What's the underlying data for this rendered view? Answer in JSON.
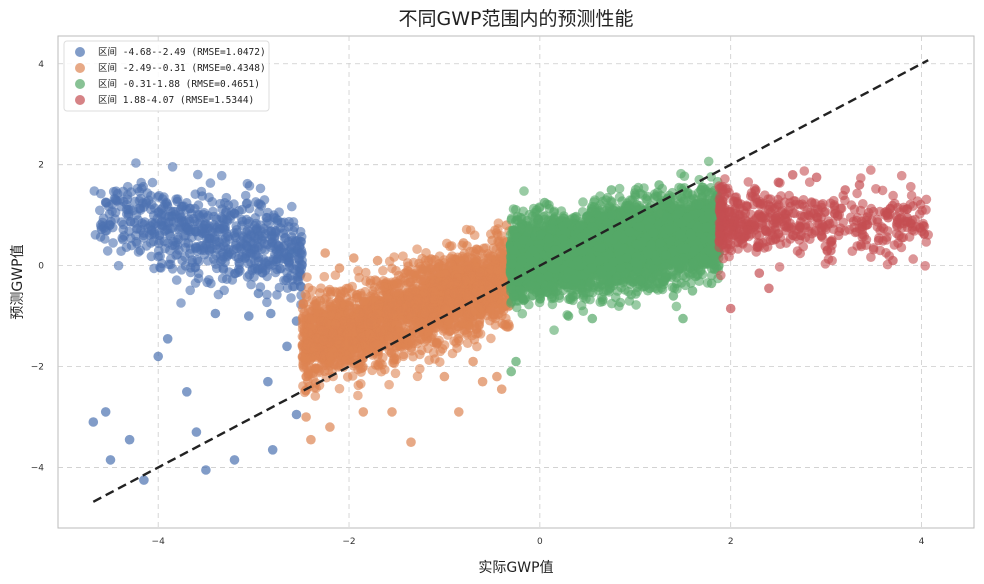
{
  "chart_data": {
    "type": "scatter",
    "title": "不同GWP范围内的预测性能",
    "xlabel": "实际GWP值",
    "ylabel": "预测GWP值",
    "xlim": [
      -5.05,
      4.55
    ],
    "ylim": [
      -5.2,
      4.55
    ],
    "xticks": [
      -4,
      -2,
      0,
      2,
      4
    ],
    "yticks": [
      -4,
      -2,
      0,
      2,
      4
    ],
    "xtick_labels": [
      "−4",
      "−2",
      "0",
      "2",
      "4"
    ],
    "ytick_labels": [
      "−4",
      "−2",
      "0",
      "2",
      "4"
    ],
    "grid": true,
    "legend_position": "top-left",
    "reference_line": {
      "style": "dashed",
      "color": "#222222",
      "from": [
        -4.68,
        -4.68
      ],
      "to": [
        4.07,
        4.07
      ]
    },
    "series": [
      {
        "name": "区间 -4.68--2.49 (RMSE=1.0472)",
        "color": "#4c72b0",
        "x_range": [
          -4.68,
          -2.49
        ],
        "count": 650,
        "points": [
          [
            -4.68,
            -3.1
          ],
          [
            -4.55,
            -2.9
          ],
          [
            -4.5,
            -3.85
          ],
          [
            -4.3,
            -3.45
          ],
          [
            -4.15,
            -4.25
          ],
          [
            -4.0,
            -1.8
          ],
          [
            -3.9,
            -1.45
          ],
          [
            -3.7,
            -2.5
          ],
          [
            -3.5,
            -4.05
          ],
          [
            -3.4,
            -0.95
          ],
          [
            -3.2,
            -3.85
          ],
          [
            -3.05,
            -1.0
          ],
          [
            -2.95,
            -0.55
          ],
          [
            -2.85,
            -2.3
          ],
          [
            -2.82,
            -0.95
          ],
          [
            -2.75,
            0.9
          ],
          [
            -2.65,
            -1.6
          ],
          [
            -2.6,
            0.25
          ],
          [
            -2.55,
            -1.1
          ],
          [
            -2.8,
            -3.65
          ],
          [
            -3.6,
            -3.3
          ],
          [
            -2.55,
            -2.95
          ]
        ]
      },
      {
        "name": "区间 -2.49--0.31 (RMSE=0.4348)",
        "color": "#dd8452",
        "x_range": [
          -2.49,
          -0.31
        ],
        "count": 2300,
        "points": [
          [
            -2.45,
            -3.0
          ],
          [
            -2.4,
            -3.45
          ],
          [
            -2.3,
            -0.7
          ],
          [
            -2.25,
            0.25
          ],
          [
            -2.2,
            -3.2
          ],
          [
            -2.1,
            -0.05
          ],
          [
            -1.95,
            0.15
          ],
          [
            -1.85,
            -2.9
          ],
          [
            -1.7,
            0.1
          ],
          [
            -1.55,
            -2.9
          ],
          [
            -1.35,
            -3.5
          ],
          [
            -1.2,
            -0.1
          ],
          [
            -1.0,
            -2.2
          ],
          [
            -0.85,
            -2.9
          ],
          [
            -0.8,
            0.45
          ],
          [
            -0.7,
            -1.9
          ],
          [
            -0.6,
            -2.3
          ],
          [
            -0.5,
            0.5
          ],
          [
            -0.45,
            -2.2
          ],
          [
            -0.35,
            0.8
          ],
          [
            -0.4,
            -2.45
          ]
        ]
      },
      {
        "name": "区间 -0.31-1.88 (RMSE=0.4651)",
        "color": "#55a868",
        "x_range": [
          -0.31,
          1.88
        ],
        "count": 5200,
        "points": [
          [
            -0.3,
            -2.1
          ],
          [
            -0.25,
            -1.9
          ],
          [
            -0.2,
            0.95
          ],
          [
            0.05,
            1.25
          ],
          [
            0.3,
            -1.0
          ],
          [
            0.55,
            -1.05
          ],
          [
            0.75,
            1.5
          ],
          [
            1.0,
            1.4
          ],
          [
            1.15,
            -0.45
          ],
          [
            1.25,
            1.6
          ],
          [
            1.4,
            -0.6
          ],
          [
            1.55,
            1.45
          ],
          [
            1.6,
            -0.5
          ],
          [
            1.7,
            1.55
          ],
          [
            1.8,
            -0.35
          ],
          [
            1.85,
            0.95
          ],
          [
            1.5,
            -1.05
          ]
        ]
      },
      {
        "name": "区间 1.88-4.07 (RMSE=1.5344)",
        "color": "#c44e52",
        "x_range": [
          1.88,
          4.07
        ],
        "count": 520,
        "points": [
          [
            1.9,
            1.55
          ],
          [
            2.0,
            -0.85
          ],
          [
            2.3,
            -0.15
          ],
          [
            2.5,
            1.65
          ],
          [
            2.65,
            1.8
          ],
          [
            2.9,
            1.75
          ],
          [
            3.2,
            1.5
          ],
          [
            3.35,
            1.6
          ],
          [
            3.55,
            0.5
          ],
          [
            3.65,
            0.95
          ],
          [
            3.75,
            0.9
          ],
          [
            3.85,
            0.95
          ],
          [
            3.7,
            0.1
          ],
          [
            3.05,
            0.3
          ],
          [
            2.4,
            -0.45
          ]
        ]
      }
    ]
  }
}
